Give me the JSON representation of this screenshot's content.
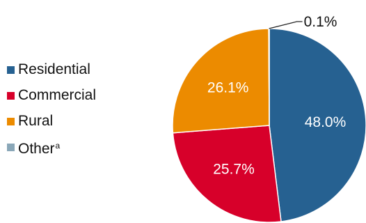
{
  "chart_data": {
    "type": "pie",
    "slices": [
      {
        "label": "Residential",
        "value": 48.0,
        "display": "48.0%",
        "color": "#266191",
        "label_color": "#ffffff"
      },
      {
        "label": "Commercial",
        "value": 25.7,
        "display": "25.7%",
        "color": "#d7002a",
        "label_color": "#ffffff"
      },
      {
        "label": "Rural",
        "value": 26.1,
        "display": "26.1%",
        "color": "#ec8b00",
        "label_color": "#ffffff"
      },
      {
        "label": "Other",
        "label_sup": "a",
        "value": 0.1,
        "display": "0.1%",
        "color": "#8aa7b8",
        "label_color": "#111111"
      }
    ],
    "legend_position": "left",
    "start": "top, clockwise"
  }
}
